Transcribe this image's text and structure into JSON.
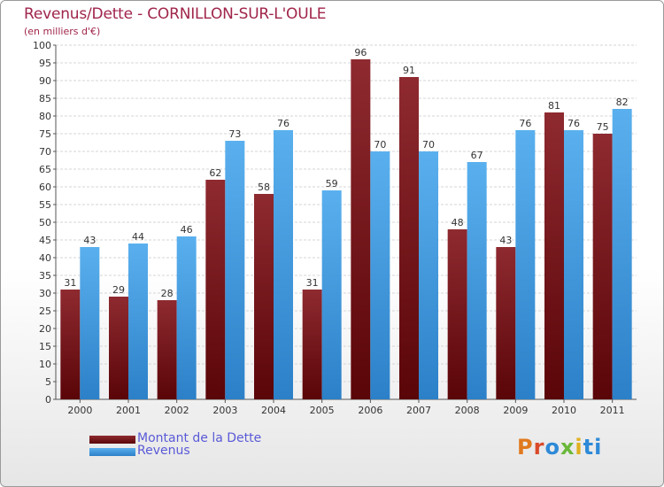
{
  "header": {
    "title": "Revenus/Dette - CORNILLON-SUR-L'OULE",
    "subtitle": "(en milliers d'€)"
  },
  "chart_data": {
    "type": "bar",
    "categories": [
      "2000",
      "2001",
      "2002",
      "2003",
      "2004",
      "2005",
      "2006",
      "2007",
      "2008",
      "2009",
      "2010",
      "2011"
    ],
    "series": [
      {
        "name": "Montant de la Dette",
        "color": "#7a1518",
        "values": [
          31,
          29,
          28,
          62,
          58,
          31,
          96,
          91,
          48,
          43,
          81,
          75
        ]
      },
      {
        "name": "Revenus",
        "color": "#4aa3e6",
        "values": [
          43,
          44,
          46,
          73,
          76,
          59,
          70,
          70,
          67,
          76,
          76,
          82
        ]
      }
    ],
    "ylim": [
      0,
      100
    ],
    "ytick_step": 5,
    "grid": true,
    "legend_position": "bottom-left"
  },
  "logo": {
    "letters": [
      "P",
      "r",
      "o",
      "x",
      "i",
      "ti"
    ]
  }
}
